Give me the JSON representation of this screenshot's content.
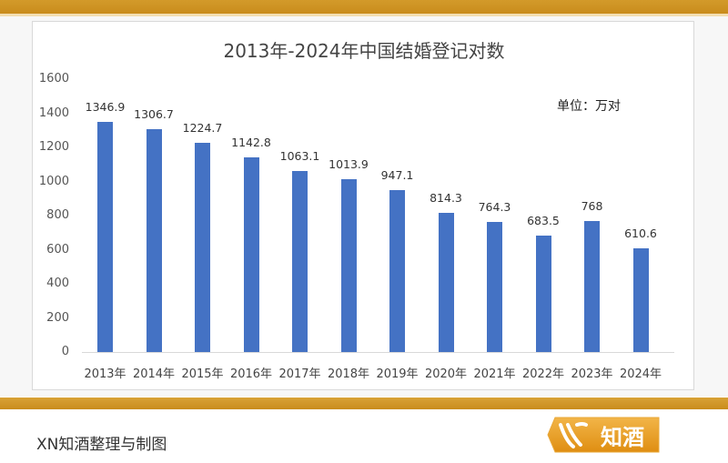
{
  "chart_data": {
    "type": "bar",
    "title": "2013年-2024年中国结婚登记对数",
    "unit_label": "单位：万对",
    "xlabel": "",
    "ylabel": "",
    "ylim": [
      0,
      1600
    ],
    "yticks": [
      0,
      200,
      400,
      600,
      800,
      1000,
      1200,
      1400,
      1600
    ],
    "grid": false,
    "legend": null,
    "categories": [
      "2013年",
      "2014年",
      "2015年",
      "2016年",
      "2017年",
      "2018年",
      "2019年",
      "2020年",
      "2021年",
      "2022年",
      "2023年",
      "2024年"
    ],
    "values": [
      1346.9,
      1306.7,
      1224.7,
      1142.8,
      1063.1,
      1013.9,
      947.1,
      814.3,
      764.3,
      683.5,
      768,
      610.6
    ],
    "value_labels": [
      "1346.9",
      "1306.7",
      "1224.7",
      "1142.8",
      "1063.1",
      "1013.9",
      "947.1",
      "814.3",
      "764.3",
      "683.5",
      "768",
      "610.6"
    ],
    "bar_color": "#4472c4"
  },
  "footer": {
    "credit": "XN知酒整理与制图",
    "logo_text": "知酒"
  },
  "colors": {
    "band": "#cf951f",
    "bar": "#4472c4"
  }
}
